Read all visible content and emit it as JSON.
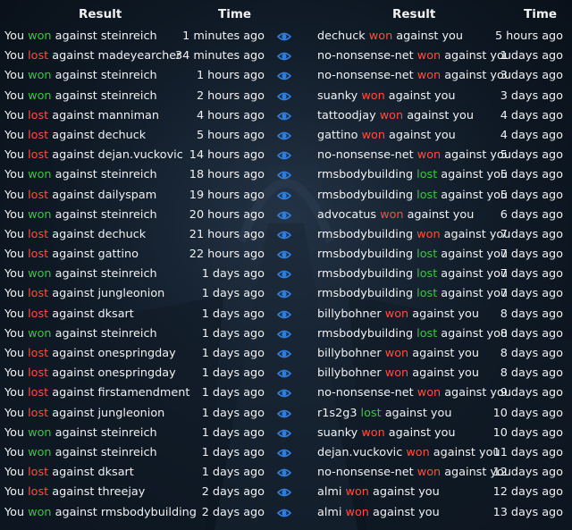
{
  "headers": {
    "left_result": "Result",
    "left_time": "Time",
    "right_result": "Result",
    "right_time": "Time"
  },
  "colors": {
    "won": "#36c93a",
    "lost": "#ff4d3d",
    "eye": "#2f7fe0"
  },
  "icons": {
    "view": "eye-icon"
  },
  "left_rows": [
    {
      "prefix": "You ",
      "result": "won",
      "suffix": " against steinreich",
      "time": "1 minutes ago"
    },
    {
      "prefix": "You ",
      "result": "lost",
      "suffix": " against madeyearcher",
      "time": "34 minutes ago"
    },
    {
      "prefix": "You ",
      "result": "won",
      "suffix": " against steinreich",
      "time": "1 hours ago"
    },
    {
      "prefix": "You ",
      "result": "won",
      "suffix": " against steinreich",
      "time": "2 hours ago"
    },
    {
      "prefix": "You ",
      "result": "lost",
      "suffix": " against manniman",
      "time": "4 hours ago"
    },
    {
      "prefix": "You ",
      "result": "lost",
      "suffix": " against dechuck",
      "time": "5 hours ago"
    },
    {
      "prefix": "You ",
      "result": "lost",
      "suffix": " against dejan.vuckovic",
      "time": "14 hours ago"
    },
    {
      "prefix": "You ",
      "result": "won",
      "suffix": " against steinreich",
      "time": "18 hours ago"
    },
    {
      "prefix": "You ",
      "result": "lost",
      "suffix": " against dailyspam",
      "time": "19 hours ago"
    },
    {
      "prefix": "You ",
      "result": "won",
      "suffix": " against steinreich",
      "time": "20 hours ago"
    },
    {
      "prefix": "You ",
      "result": "lost",
      "suffix": " against dechuck",
      "time": "21 hours ago"
    },
    {
      "prefix": "You ",
      "result": "lost",
      "suffix": " against gattino",
      "time": "22 hours ago"
    },
    {
      "prefix": "You ",
      "result": "won",
      "suffix": " against steinreich",
      "time": "1 days ago"
    },
    {
      "prefix": "You ",
      "result": "lost",
      "suffix": " against jungleonion",
      "time": "1 days ago"
    },
    {
      "prefix": "You ",
      "result": "lost",
      "suffix": " against dksart",
      "time": "1 days ago"
    },
    {
      "prefix": "You ",
      "result": "won",
      "suffix": " against steinreich",
      "time": "1 days ago"
    },
    {
      "prefix": "You ",
      "result": "lost",
      "suffix": " against onespringday",
      "time": "1 days ago"
    },
    {
      "prefix": "You ",
      "result": "lost",
      "suffix": " against onespringday",
      "time": "1 days ago"
    },
    {
      "prefix": "You ",
      "result": "lost",
      "suffix": " against firstamendment",
      "time": "1 days ago"
    },
    {
      "prefix": "You ",
      "result": "lost",
      "suffix": " against jungleonion",
      "time": "1 days ago"
    },
    {
      "prefix": "You ",
      "result": "won",
      "suffix": " against steinreich",
      "time": "1 days ago"
    },
    {
      "prefix": "You ",
      "result": "won",
      "suffix": " against steinreich",
      "time": "1 days ago"
    },
    {
      "prefix": "You ",
      "result": "lost",
      "suffix": " against dksart",
      "time": "1 days ago"
    },
    {
      "prefix": "You ",
      "result": "lost",
      "suffix": " against threejay",
      "time": "2 days ago"
    },
    {
      "prefix": "You ",
      "result": "won",
      "suffix": " against rmsbodybuilding",
      "time": "2 days ago"
    }
  ],
  "right_rows": [
    {
      "prefix": "dechuck ",
      "result": "won",
      "suffix": " against you",
      "time": "5 hours ago"
    },
    {
      "prefix": "no-nonsense-net ",
      "result": "won",
      "suffix": " against you",
      "time": "1 days ago"
    },
    {
      "prefix": "no-nonsense-net ",
      "result": "won",
      "suffix": " against you",
      "time": "3 days ago"
    },
    {
      "prefix": "suanky ",
      "result": "won",
      "suffix": " against you",
      "time": "3 days ago"
    },
    {
      "prefix": "tattoodjay ",
      "result": "won",
      "suffix": " against you",
      "time": "4 days ago"
    },
    {
      "prefix": "gattino ",
      "result": "won",
      "suffix": " against you",
      "time": "4 days ago"
    },
    {
      "prefix": "no-nonsense-net ",
      "result": "won",
      "suffix": " against you",
      "time": "5 days ago"
    },
    {
      "prefix": "rmsbodybuilding ",
      "result": "lost",
      "suffix": " against you",
      "time": "5 days ago"
    },
    {
      "prefix": "rmsbodybuilding ",
      "result": "lost",
      "suffix": " against you",
      "time": "5 days ago"
    },
    {
      "prefix": "advocatus ",
      "result": "won",
      "suffix": " against you",
      "time": "6 days ago"
    },
    {
      "prefix": "rmsbodybuilding ",
      "result": "won",
      "suffix": " against you",
      "time": "7 days ago"
    },
    {
      "prefix": "rmsbodybuilding ",
      "result": "lost",
      "suffix": " against you",
      "time": "7 days ago"
    },
    {
      "prefix": "rmsbodybuilding ",
      "result": "lost",
      "suffix": " against you",
      "time": "7 days ago"
    },
    {
      "prefix": "rmsbodybuilding ",
      "result": "lost",
      "suffix": " against you",
      "time": "7 days ago"
    },
    {
      "prefix": "billybohner ",
      "result": "won",
      "suffix": " against you",
      "time": "8 days ago"
    },
    {
      "prefix": "rmsbodybuilding ",
      "result": "lost",
      "suffix": " against you",
      "time": "8 days ago"
    },
    {
      "prefix": "billybohner ",
      "result": "won",
      "suffix": " against you",
      "time": "8 days ago"
    },
    {
      "prefix": "billybohner ",
      "result": "won",
      "suffix": " against you",
      "time": "8 days ago"
    },
    {
      "prefix": "no-nonsense-net ",
      "result": "won",
      "suffix": " against you",
      "time": "9 days ago"
    },
    {
      "prefix": "r1s2g3 ",
      "result": "lost",
      "suffix": " against you",
      "time": "10 days ago"
    },
    {
      "prefix": "suanky ",
      "result": "won",
      "suffix": " against you",
      "time": "10 days ago"
    },
    {
      "prefix": "dejan.vuckovic ",
      "result": "won",
      "suffix": " against you",
      "time": "11 days ago"
    },
    {
      "prefix": "no-nonsense-net ",
      "result": "won",
      "suffix": " against you",
      "time": "12 days ago"
    },
    {
      "prefix": "almi ",
      "result": "won",
      "suffix": " against you",
      "time": "12 days ago"
    },
    {
      "prefix": "almi ",
      "result": "won",
      "suffix": " against you",
      "time": "13 days ago"
    }
  ]
}
